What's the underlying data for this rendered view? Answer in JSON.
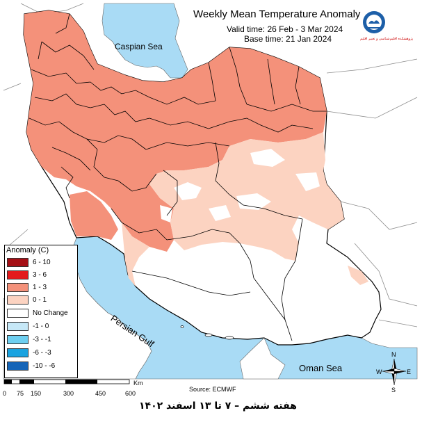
{
  "header": {
    "title": "Weekly Mean Temperature Anomaly",
    "valid_time": "Valid time: 26 Feb - 3 Mar 2024",
    "base_time": "Base time: 21 Jan 2024"
  },
  "labels": {
    "caspian": "Caspian Sea",
    "persian_gulf": "Persian Gulf",
    "oman": "Oman Sea",
    "source": "Source: ECMWF"
  },
  "legend": {
    "title": "Anomaly (C)",
    "items": [
      {
        "label": "6 - 10",
        "color": "#a50f15"
      },
      {
        "label": "3 - 6",
        "color": "#e31a1c"
      },
      {
        "label": "1 - 3",
        "color": "#f4917a"
      },
      {
        "label": "0 - 1",
        "color": "#fcd3c1"
      },
      {
        "label": "No Change",
        "color": "#ffffff"
      },
      {
        "label": "-1 - 0",
        "color": "#c6e8f7"
      },
      {
        "label": "-3 - -1",
        "color": "#6ecff0"
      },
      {
        "label": "-6 - -3",
        "color": "#1aa3e0"
      },
      {
        "label": "-10 - -6",
        "color": "#1565b8"
      }
    ]
  },
  "scale": {
    "labels": [
      "0",
      "75",
      "150",
      "300",
      "450",
      "600"
    ],
    "unit": "Km"
  },
  "compass": {
    "n": "N",
    "s": "S",
    "e": "E",
    "w": "W"
  },
  "logo": {
    "text": "پژوهشکده اقلیم‌شناسی و تغییر اقلیم"
  },
  "footer": "هفته ششم – ۷ تا ۱۳ اسفند ۱۴۰۲",
  "colors": {
    "sea": "#a9dbf5",
    "anomaly_1_3": "#f4917a",
    "anomaly_0_1": "#fcd3c1",
    "no_change": "#ffffff",
    "border": "#000000",
    "neighbor_border": "#8c8c8c"
  }
}
